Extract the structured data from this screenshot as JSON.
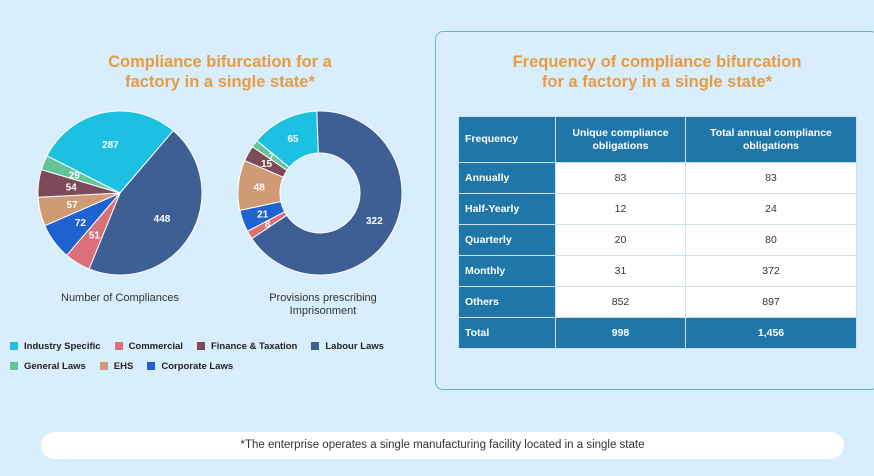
{
  "left": {
    "title_line1": "Compliance bifurcation for a",
    "title_line2": "factory in a single state*"
  },
  "chart_data": [
    {
      "type": "pie",
      "title": "Number of Compliances",
      "categories": [
        "Industry Specific",
        "Labour Laws",
        "Commercial",
        "Corporate Laws",
        "EHS",
        "Finance & Taxation",
        "General Laws"
      ],
      "values": [
        287,
        448,
        51,
        72,
        57,
        54,
        29
      ],
      "colors": [
        "#1cc0e0",
        "#3e5f94",
        "#d9707a",
        "#1e63d0",
        "#d09a74",
        "#7d4a5a",
        "#63c49a"
      ]
    },
    {
      "type": "pie",
      "title_line1": "Provisions prescribing",
      "title_line2": "Imprisonment",
      "categories": [
        "Industry Specific",
        "Labour Laws",
        "Commercial",
        "Corporate Laws",
        "EHS",
        "Finance & Taxation",
        "General Laws"
      ],
      "values": [
        65,
        322,
        8,
        21,
        48,
        15,
        7
      ],
      "colors": [
        "#1cc0e0",
        "#3e5f94",
        "#d9707a",
        "#1e63d0",
        "#d09a74",
        "#7d4a5a",
        "#63c49a"
      ],
      "donut": true
    }
  ],
  "legend": {
    "row1": [
      {
        "label": "Industry Specific",
        "color": "#1cc0e0"
      },
      {
        "label": "Commercial",
        "color": "#d9707a"
      },
      {
        "label": "Finance & Taxation",
        "color": "#7d4a5a"
      },
      {
        "label": "Labour Laws",
        "color": "#3e5f94"
      }
    ],
    "row2": [
      {
        "label": "General Laws",
        "color": "#63c49a"
      },
      {
        "label": "EHS",
        "color": "#d09a74"
      },
      {
        "label": "Corporate Laws",
        "color": "#1e63d0"
      }
    ]
  },
  "right": {
    "title_line1": "Frequency of compliance bifurcation",
    "title_line2": "for a factory in a single state*",
    "headers": [
      "Frequency",
      "Unique compliance obligations",
      "Total annual compliance obligations"
    ],
    "rows": [
      [
        "Annually",
        "83",
        "83"
      ],
      [
        "Half-Yearly",
        "12",
        "24"
      ],
      [
        "Quarterly",
        "20",
        "80"
      ],
      [
        "Monthly",
        "31",
        "372"
      ],
      [
        "Others",
        "852",
        "897"
      ]
    ],
    "total": [
      "Total",
      "998",
      "1,456"
    ]
  },
  "footnote": "*The enterprise operates a single manufacturing facility located in a single state"
}
